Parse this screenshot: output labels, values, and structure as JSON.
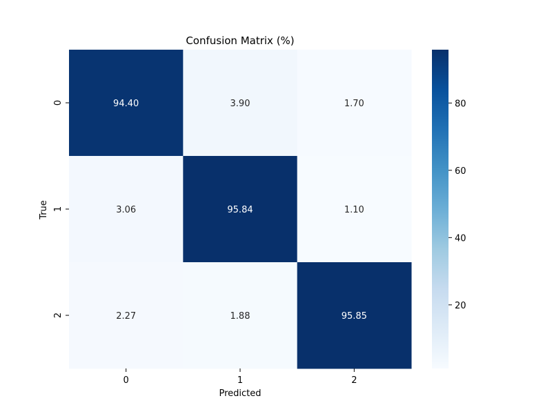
{
  "chart_data": {
    "type": "heatmap",
    "title": "Confusion Matrix (%)",
    "xlabel": "Predicted",
    "ylabel": "True",
    "x_categories": [
      "0",
      "1",
      "2"
    ],
    "y_categories": [
      "0",
      "1",
      "2"
    ],
    "values": [
      [
        94.4,
        3.9,
        1.7
      ],
      [
        3.06,
        95.84,
        1.1
      ],
      [
        2.27,
        1.88,
        95.85
      ]
    ],
    "value_format": "2 decimals",
    "colormap": "Blues",
    "vmin": 1.1,
    "vmax": 95.85,
    "colorbar": {
      "ticks": [
        20,
        40,
        60,
        80
      ],
      "tick_labels": [
        "20",
        "40",
        "60",
        "80"
      ],
      "position": "right"
    },
    "colors": {
      "low": "#f7fbff",
      "high": "#08306b"
    }
  }
}
